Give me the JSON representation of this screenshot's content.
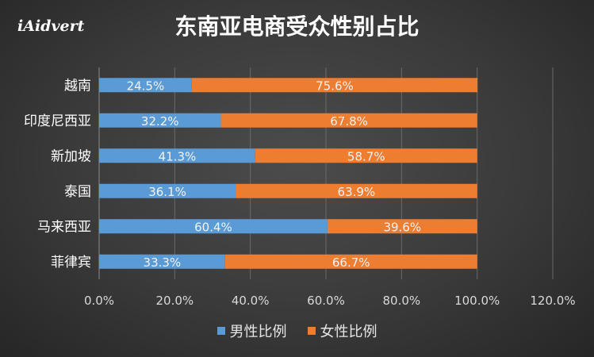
{
  "logo_text": "iAidvert",
  "chart_data": {
    "type": "bar",
    "orientation": "horizontal",
    "stacked": true,
    "title": "东南亚电商受众性别占比",
    "categories": [
      "越南",
      "印度尼西亚",
      "新加坡",
      "泰国",
      "马来西亚",
      "菲律宾"
    ],
    "series": [
      {
        "name": "男性比例",
        "color": "#5b9bd5",
        "values": [
          24.5,
          32.2,
          41.3,
          36.1,
          60.4,
          33.3
        ]
      },
      {
        "name": "女性比例",
        "color": "#ed7d31",
        "values": [
          75.6,
          67.8,
          58.7,
          63.9,
          39.6,
          66.7
        ]
      }
    ],
    "xlim": [
      0,
      120
    ],
    "xticks": [
      "0.0%",
      "20.0%",
      "40.0%",
      "60.0%",
      "80.0%",
      "100.0%",
      "120.0%"
    ],
    "grid": true,
    "legend_position": "bottom"
  }
}
